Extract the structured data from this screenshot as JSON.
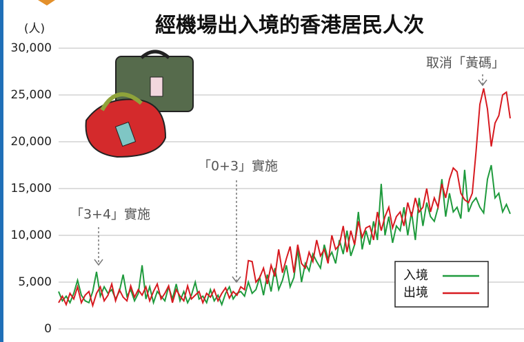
{
  "chart_data": {
    "type": "line",
    "title": "經機場出入境的香港居民人次",
    "y_label": "(人)",
    "categories": [
      null,
      null,
      null,
      null,
      null,
      null,
      null,
      null,
      null,
      null,
      null,
      null,
      null,
      null,
      null,
      null,
      null,
      null,
      null,
      null,
      null,
      null,
      null,
      null,
      null,
      null,
      null,
      null,
      null,
      null,
      null,
      null,
      null,
      null,
      null,
      null,
      null,
      null,
      null,
      null,
      null,
      null,
      null,
      null,
      null,
      null,
      null,
      null,
      null,
      null,
      null,
      null,
      null,
      null,
      null,
      null,
      null,
      null,
      null,
      null,
      null,
      null,
      null,
      null,
      null,
      null,
      null,
      null,
      null,
      null,
      null,
      null,
      null,
      null,
      null,
      null,
      null,
      null,
      null,
      null,
      null,
      null,
      null,
      null,
      null,
      null,
      null,
      null,
      null,
      null,
      null,
      null,
      null,
      null,
      null,
      null,
      null,
      null,
      null,
      null,
      null,
      null,
      null,
      null,
      null,
      null,
      null,
      null,
      null,
      null,
      null,
      null,
      null,
      null,
      null,
      null,
      null,
      null,
      null,
      null
    ],
    "series": [
      {
        "name": "入境",
        "color": "#1e9a3c",
        "values": [
          4000,
          3000,
          3500,
          2800,
          3800,
          5200,
          3600,
          3000,
          2800,
          4000,
          6100,
          3500,
          4500,
          3800,
          4200,
          3200,
          4000,
          5800,
          3500,
          4200,
          3000,
          3800,
          6800,
          3200,
          4500,
          2800,
          4000,
          3500,
          3000,
          4500,
          3200,
          4800,
          3000,
          4000,
          2800,
          3600,
          5000,
          3200,
          3500,
          2800,
          4200,
          3000,
          3600,
          2600,
          3800,
          4500,
          3200,
          3800,
          4000,
          3500,
          5000,
          3800,
          4200,
          5500,
          3600,
          5800,
          4000,
          6500,
          4200,
          5200,
          6800,
          4500,
          5500,
          8500,
          5000,
          7000,
          6200,
          8000,
          7200,
          6500,
          9000,
          7500,
          8200,
          7000,
          9500,
          8000,
          10500,
          7800,
          9000,
          12500,
          8500,
          10500,
          9000,
          11500,
          9500,
          15500,
          10000,
          12000,
          9200,
          11000,
          10500,
          13000,
          10000,
          12500,
          9500,
          14000,
          11000,
          13500,
          12000,
          11500,
          13000,
          16000,
          12000,
          14500,
          12500,
          13000,
          11800,
          17000,
          12500,
          13500,
          14000,
          13000,
          12400,
          16000,
          17500,
          14000,
          14500,
          12500,
          13300,
          12300
        ]
      },
      {
        "name": "出境",
        "color": "#d7191f",
        "values": [
          2800,
          3500,
          2600,
          3800,
          3200,
          4500,
          2800,
          3600,
          4000,
          2500,
          3800,
          4500,
          3000,
          3600,
          4800,
          3000,
          4200,
          3400,
          3000,
          4600,
          3400,
          4200,
          3600,
          4500,
          3000,
          4000,
          4800,
          3200,
          3800,
          4600,
          2800,
          4200,
          3500,
          3000,
          4600,
          3200,
          3600,
          4000,
          2800,
          3800,
          3400,
          4200,
          3000,
          3800,
          4400,
          3300,
          4000,
          3600,
          4500,
          4200,
          7300,
          7200,
          5000,
          5500,
          6500,
          4800,
          6800,
          5600,
          8500,
          6000,
          7500,
          8800,
          6000,
          9000,
          7000,
          6500,
          8200,
          7200,
          9500,
          7800,
          8500,
          7000,
          10000,
          8500,
          9000,
          11000,
          8200,
          10500,
          9000,
          11500,
          9800,
          10800,
          11000,
          9500,
          12500,
          10500,
          12000,
          13000,
          10800,
          12000,
          12500,
          11000,
          13500,
          12000,
          14000,
          12500,
          13000,
          15000,
          12500,
          14000,
          13000,
          15500,
          14000,
          16000,
          17200,
          16800,
          14500,
          13800,
          13500,
          14500,
          19000,
          24000,
          25700,
          23500,
          19500,
          22000,
          22800,
          25000,
          25300,
          22500
        ]
      }
    ],
    "ylim": [
      0,
      30000
    ],
    "yticks": [
      0,
      {
        "value": 5000,
        "label": "5,000"
      },
      {
        "value": 10000,
        "label": "10,000"
      },
      {
        "value": 15000,
        "label": "15,000"
      },
      {
        "value": 20000,
        "label": "20,000"
      },
      {
        "value": 25000,
        "label": "25,000"
      },
      {
        "value": 30000,
        "label": "30,000"
      }
    ],
    "grid": true,
    "legend": "lower right",
    "annotations": [
      "「3+4」實施",
      "「0+3」實施",
      "取消「黃碼」"
    ]
  }
}
